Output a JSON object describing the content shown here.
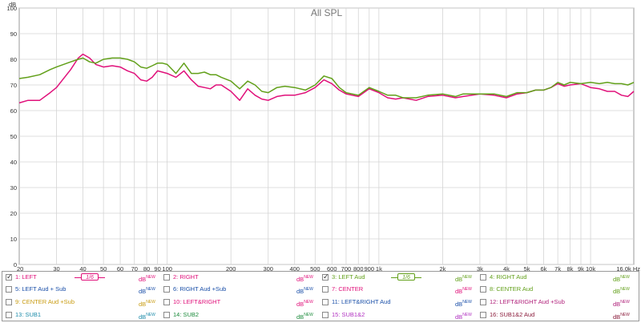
{
  "window": {
    "title": "All SPL"
  },
  "chart_data": {
    "type": "line",
    "title": "All SPL",
    "xlabel": "",
    "ylabel": "dB",
    "xscale": "log",
    "xlim": [
      20,
      16000
    ],
    "ylim": [
      0,
      100
    ],
    "grid": true,
    "y_ticks": [
      0,
      10,
      20,
      30,
      40,
      50,
      60,
      70,
      80,
      90,
      100
    ],
    "x_ticks": [
      {
        "v": 20,
        "label": "20"
      },
      {
        "v": 30,
        "label": "30"
      },
      {
        "v": 40,
        "label": "40"
      },
      {
        "v": 50,
        "label": "50"
      },
      {
        "v": 60,
        "label": "60"
      },
      {
        "v": 70,
        "label": "70"
      },
      {
        "v": 80,
        "label": "80"
      },
      {
        "v": 90,
        "label": "90"
      },
      {
        "v": 100,
        "label": "100"
      },
      {
        "v": 200,
        "label": "200"
      },
      {
        "v": 300,
        "label": "300"
      },
      {
        "v": 400,
        "label": "400"
      },
      {
        "v": 500,
        "label": "500"
      },
      {
        "v": 600,
        "label": "600"
      },
      {
        "v": 700,
        "label": "700"
      },
      {
        "v": 800,
        "label": "800"
      },
      {
        "v": 900,
        "label": "900"
      },
      {
        "v": 1000,
        "label": "1k"
      },
      {
        "v": 2000,
        "label": "2k"
      },
      {
        "v": 3000,
        "label": "3k"
      },
      {
        "v": 4000,
        "label": "4k"
      },
      {
        "v": 5000,
        "label": "5k"
      },
      {
        "v": 6000,
        "label": "6k"
      },
      {
        "v": 7000,
        "label": "7k"
      },
      {
        "v": 8000,
        "label": "8k"
      },
      {
        "v": 9000,
        "label": "9k"
      },
      {
        "v": 10000,
        "label": "10k"
      },
      {
        "v": 16000,
        "label": "16,0k Hz"
      }
    ],
    "series": [
      {
        "name": "1: LEFT",
        "color": "#e0107a",
        "x": [
          20,
          22,
          25,
          28,
          30,
          35,
          38,
          40,
          43,
          46,
          50,
          55,
          60,
          65,
          70,
          75,
          80,
          85,
          90,
          95,
          100,
          110,
          120,
          130,
          140,
          150,
          160,
          170,
          180,
          200,
          220,
          240,
          260,
          280,
          300,
          330,
          360,
          400,
          450,
          500,
          550,
          600,
          650,
          700,
          800,
          900,
          1000,
          1100,
          1200,
          1300,
          1500,
          1700,
          2000,
          2300,
          2500,
          3000,
          3500,
          4000,
          4500,
          5000,
          5500,
          6000,
          6500,
          7000,
          7500,
          8000,
          9000,
          10000,
          11000,
          12000,
          13000,
          14000,
          15000,
          16000
        ],
        "y": [
          63,
          64,
          64,
          67,
          69,
          76,
          80.5,
          82,
          80.5,
          78,
          77,
          77.5,
          77,
          75.5,
          74.5,
          72,
          71.5,
          73,
          75.5,
          75,
          74.5,
          73,
          75.5,
          72,
          69.5,
          69,
          68.5,
          70,
          70,
          67.5,
          64,
          68.5,
          66,
          64.5,
          64,
          65.5,
          66,
          66,
          67,
          69,
          72,
          70.5,
          68,
          66.5,
          65.5,
          68.5,
          67,
          65,
          64.5,
          65,
          64,
          65.5,
          66,
          65,
          65.5,
          66.5,
          66,
          65,
          66.5,
          67,
          68,
          68,
          69,
          70.5,
          69.5,
          70,
          70.5,
          69,
          68.5,
          67.5,
          67.5,
          66,
          65.5,
          67.5
        ]
      },
      {
        "name": "3: LEFT Aud",
        "color": "#62a01a",
        "x": [
          20,
          22,
          25,
          28,
          30,
          35,
          38,
          40,
          43,
          46,
          50,
          55,
          60,
          65,
          70,
          75,
          80,
          85,
          90,
          95,
          100,
          110,
          120,
          130,
          140,
          150,
          160,
          170,
          180,
          200,
          220,
          240,
          260,
          280,
          300,
          330,
          360,
          400,
          450,
          500,
          550,
          600,
          650,
          700,
          800,
          900,
          1000,
          1100,
          1200,
          1300,
          1500,
          1700,
          2000,
          2300,
          2500,
          3000,
          3500,
          4000,
          4500,
          5000,
          5500,
          6000,
          6500,
          7000,
          7500,
          8000,
          9000,
          10000,
          11000,
          12000,
          13000,
          14000,
          15000,
          16000
        ],
        "y": [
          72.5,
          73,
          74,
          76,
          77,
          79,
          80,
          80.5,
          79,
          78.5,
          80,
          80.5,
          80.5,
          80,
          79,
          77,
          76.5,
          77.5,
          78.5,
          78.5,
          78,
          74.5,
          78.5,
          74.5,
          74.5,
          75,
          74,
          74,
          73,
          71.5,
          68.5,
          71.5,
          70,
          67.5,
          67,
          69,
          69.5,
          69,
          68,
          70,
          73.5,
          72.5,
          69,
          67,
          66,
          69,
          67.5,
          66,
          66,
          65,
          65,
          66,
          66.5,
          65.5,
          66.5,
          66.5,
          66.5,
          65.5,
          67,
          67,
          68,
          68,
          69,
          71,
          70,
          71,
          70.5,
          71,
          70.5,
          71,
          70.5,
          70.5,
          70,
          71
        ]
      }
    ]
  },
  "legend": {
    "new_label": "NEW",
    "db_label": "dB",
    "smoothing_label": "1/6",
    "items": [
      {
        "label": "1: LEFT",
        "color": "#e0107a",
        "checked": true,
        "smoothing": true
      },
      {
        "label": "2: RIGHT",
        "color": "#e0107a",
        "checked": false,
        "smoothing": false
      },
      {
        "label": "3: LEFT Aud",
        "color": "#62a01a",
        "checked": true,
        "smoothing": true
      },
      {
        "label": "4: RIGHT Aud",
        "color": "#62a01a",
        "checked": false,
        "smoothing": false
      },
      {
        "label": "5: LEFT Aud + Sub",
        "color": "#1a4fa8",
        "checked": false,
        "smoothing": false
      },
      {
        "label": "6: RIGHT Aud +Sub",
        "color": "#1a4fa8",
        "checked": false,
        "smoothing": false
      },
      {
        "label": "7: CENTER",
        "color": "#e0107a",
        "checked": false,
        "smoothing": false
      },
      {
        "label": "8: CENTER Aud",
        "color": "#62a01a",
        "checked": false,
        "smoothing": false
      },
      {
        "label": "9: CENTER Aud +Sub",
        "color": "#c89b10",
        "checked": false,
        "smoothing": false
      },
      {
        "label": "10: LEFT&RIGHT",
        "color": "#e0107a",
        "checked": false,
        "smoothing": false
      },
      {
        "label": "11: LEFT&RIGHT Aud",
        "color": "#1a4fa8",
        "checked": false,
        "smoothing": false
      },
      {
        "label": "12: LEFT&RIGHT Aud +Sub",
        "color": "#b0207a",
        "checked": false,
        "smoothing": false
      },
      {
        "label": "13: SUB1",
        "color": "#1a8aa8",
        "checked": false,
        "smoothing": false
      },
      {
        "label": "14: SUB2",
        "color": "#1a8a3a",
        "checked": false,
        "smoothing": false
      },
      {
        "label": "15: SUB1&2",
        "color": "#b030c0",
        "checked": false,
        "smoothing": false
      },
      {
        "label": "16: SUB1&2 Aud",
        "color": "#8a1a3a",
        "checked": false,
        "smoothing": false
      }
    ]
  }
}
